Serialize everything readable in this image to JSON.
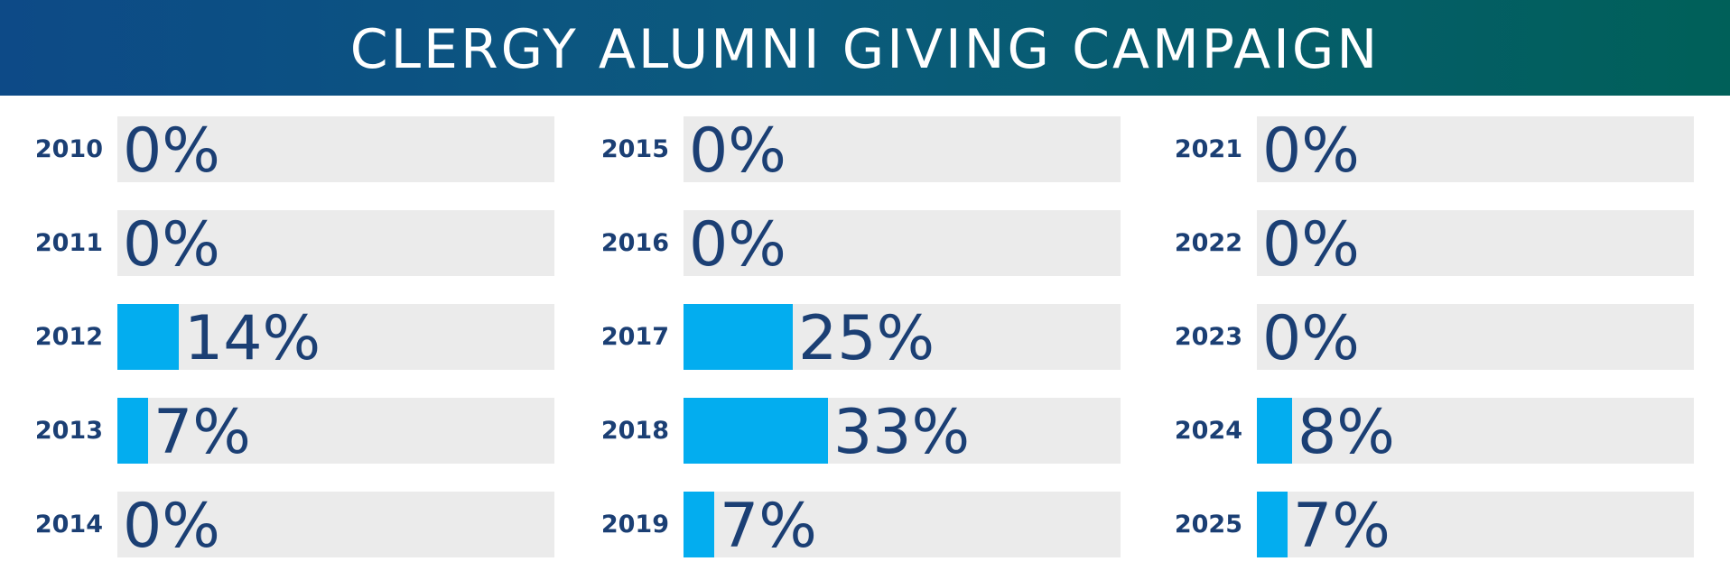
{
  "header": {
    "title": "CLERGY ALUMNI GIVING CAMPAIGN"
  },
  "colors": {
    "header_gradient_start": "#0d4a87",
    "header_gradient_end": "#006059",
    "bar_fill": "#03adef",
    "bar_track": "#ebebeb",
    "text": "#1b3f74"
  },
  "chart_data": {
    "type": "bar",
    "orientation": "horizontal",
    "title": "CLERGY ALUMNI GIVING CAMPAIGN",
    "xlim": [
      0,
      100
    ],
    "grid": false,
    "columns": [
      {
        "categories": [
          "2010",
          "2011",
          "2012",
          "2013",
          "2014"
        ],
        "values": [
          0,
          0,
          14,
          7,
          0
        ],
        "labels": [
          "0%",
          "0%",
          "14%",
          "7%",
          "0%"
        ]
      },
      {
        "categories": [
          "2015",
          "2016",
          "2017",
          "2018",
          "2019"
        ],
        "values": [
          0,
          0,
          25,
          33,
          7
        ],
        "labels": [
          "0%",
          "0%",
          "25%",
          "33%",
          "7%"
        ]
      },
      {
        "categories": [
          "2021",
          "2022",
          "2023",
          "2024",
          "2025"
        ],
        "values": [
          0,
          0,
          0,
          8,
          7
        ],
        "labels": [
          "0%",
          "0%",
          "0%",
          "8%",
          "7%"
        ]
      }
    ]
  }
}
